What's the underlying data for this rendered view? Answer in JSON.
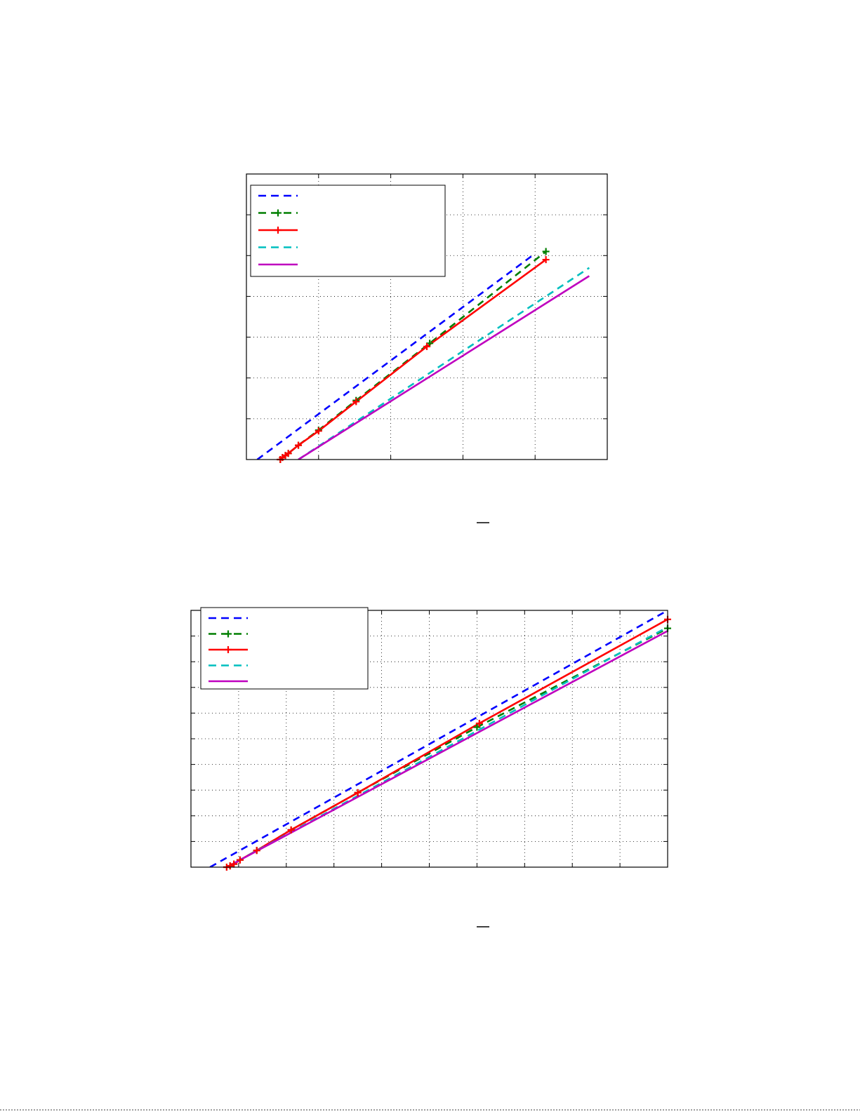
{
  "colors": {
    "blue": "#0000ff",
    "green": "#007f00",
    "red": "#ff0000",
    "cyan": "#00bfbf",
    "magenta": "#bf00bf"
  },
  "chart_data": [
    {
      "type": "line",
      "title": "",
      "xlabel": "",
      "ylabel": "",
      "xlim": [
        0,
        5
      ],
      "ylim": [
        0,
        7
      ],
      "grid": true,
      "legend": "top-left",
      "series": [
        {
          "color": "blue",
          "dash": "dashed",
          "marker": "none",
          "x": [
            0.15,
            4.0
          ],
          "y": [
            0.0,
            5.05
          ]
        },
        {
          "color": "green",
          "dash": "dashed",
          "marker": "plus",
          "x": [
            0.47,
            0.5,
            0.54,
            0.58,
            0.72,
            1.0,
            1.52,
            2.54,
            4.15
          ],
          "y": [
            0.0,
            0.05,
            0.1,
            0.15,
            0.35,
            0.72,
            1.45,
            2.85,
            5.1
          ]
        },
        {
          "color": "red",
          "dash": "solid",
          "marker": "plus",
          "x": [
            0.47,
            0.5,
            0.54,
            0.58,
            0.72,
            1.0,
            1.52,
            2.5,
            4.15
          ],
          "y": [
            0.0,
            0.05,
            0.1,
            0.15,
            0.35,
            0.7,
            1.42,
            2.77,
            4.9
          ]
        },
        {
          "color": "cyan",
          "dash": "dashed",
          "marker": "none",
          "x": [
            0.72,
            4.75
          ],
          "y": [
            0.0,
            4.7
          ]
        },
        {
          "color": "magenta",
          "dash": "solid",
          "marker": "none",
          "x": [
            0.72,
            4.75
          ],
          "y": [
            0.0,
            4.5
          ]
        }
      ]
    },
    {
      "type": "line",
      "title": "",
      "xlabel": "",
      "ylabel": "",
      "xlim": [
        0,
        10
      ],
      "ylim": [
        0,
        10
      ],
      "grid": true,
      "legend": "top-left",
      "series": [
        {
          "color": "blue",
          "dash": "dashed",
          "marker": "none",
          "x": [
            0.4,
            10.0
          ],
          "y": [
            0.0,
            10.0
          ]
        },
        {
          "color": "green",
          "dash": "dashed",
          "marker": "plus",
          "x": [
            0.75,
            0.82,
            0.9,
            1.03,
            1.38,
            2.1,
            3.5,
            6.0,
            10.0
          ],
          "y": [
            0.0,
            0.05,
            0.12,
            0.28,
            0.65,
            1.45,
            2.9,
            5.45,
            9.3
          ]
        },
        {
          "color": "red",
          "dash": "solid",
          "marker": "plus",
          "x": [
            0.75,
            0.82,
            0.9,
            1.03,
            1.38,
            2.1,
            3.5,
            6.05,
            10.0
          ],
          "y": [
            0.0,
            0.05,
            0.12,
            0.28,
            0.65,
            1.45,
            2.9,
            5.6,
            9.65
          ]
        },
        {
          "color": "cyan",
          "dash": "dashed",
          "marker": "none",
          "x": [
            0.75,
            10.0
          ],
          "y": [
            0.0,
            9.35
          ]
        },
        {
          "color": "magenta",
          "dash": "solid",
          "marker": "none",
          "x": [
            0.75,
            10.0
          ],
          "y": [
            0.0,
            9.2
          ]
        }
      ]
    }
  ]
}
